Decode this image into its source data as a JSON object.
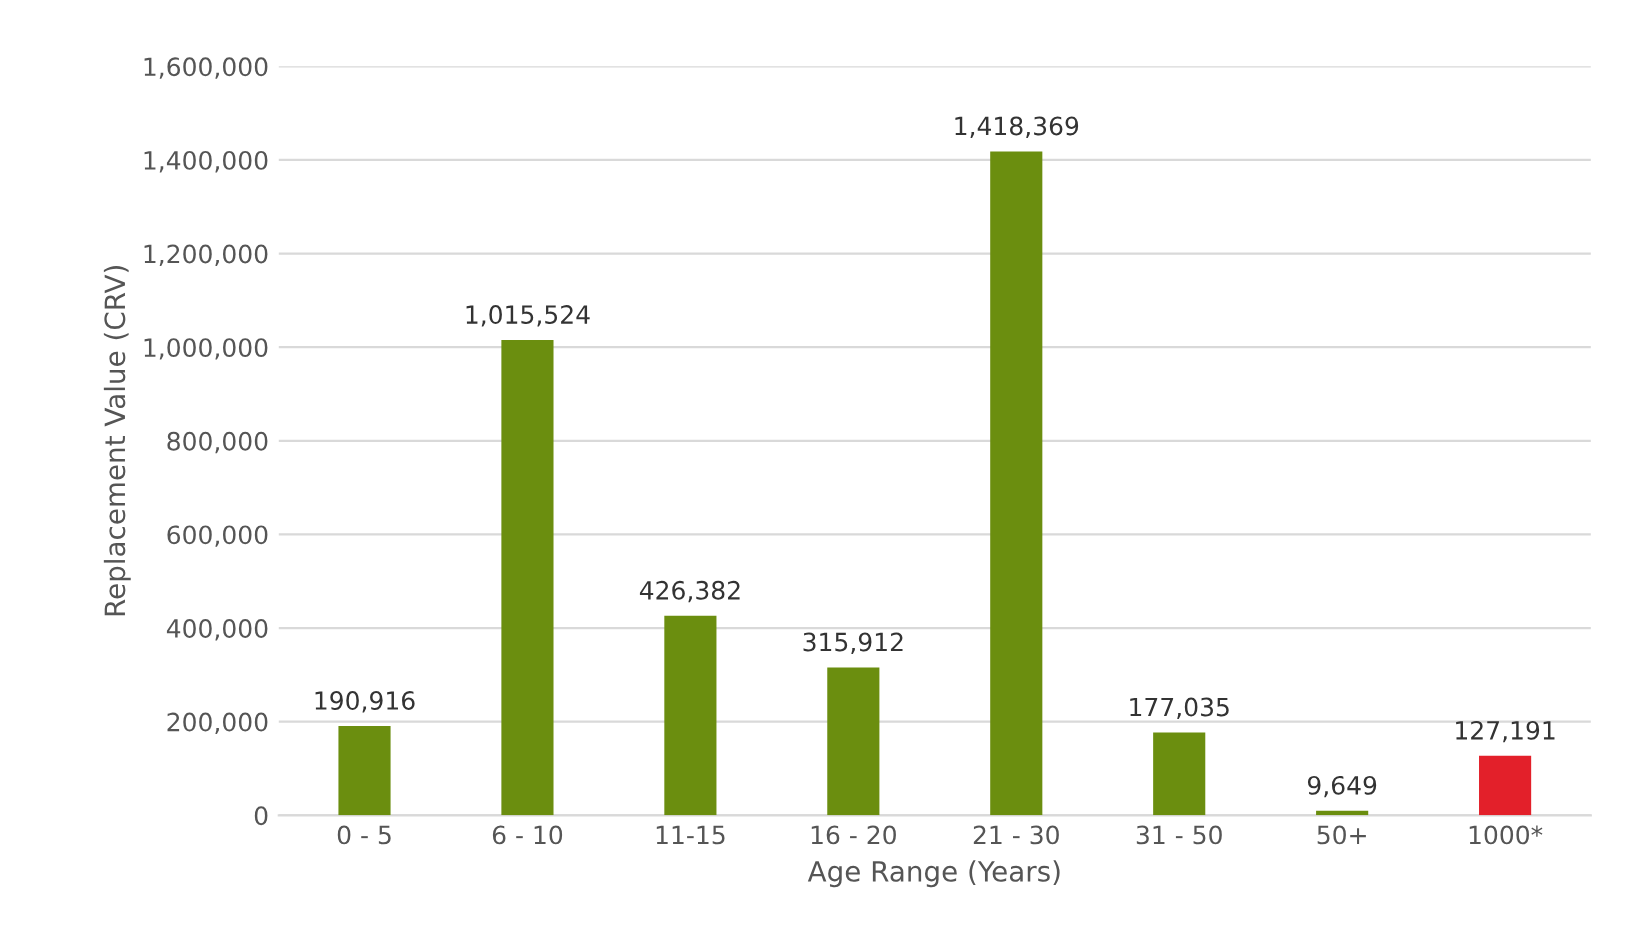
{
  "chart_data": {
    "type": "bar",
    "xlabel": "Age Range (Years)",
    "ylabel": "Replacement Value (CRV)",
    "categories": [
      "0 - 5",
      "6 - 10",
      "11-15",
      "16 - 20",
      "21 - 30",
      "31 - 50",
      "50+",
      "1000*"
    ],
    "values": [
      190916,
      1015524,
      426382,
      315912,
      1418369,
      177035,
      9649,
      127191
    ],
    "colors": [
      "#6b8e0f",
      "#6b8e0f",
      "#6b8e0f",
      "#6b8e0f",
      "#6b8e0f",
      "#6b8e0f",
      "#6b8e0f",
      "#e3202a"
    ],
    "value_labels": [
      "190,916",
      "1,015,524",
      "426,382",
      "315,912",
      "1,418,369",
      "177,035",
      "9,649",
      "127,191"
    ],
    "ylim": [
      0,
      1600000
    ],
    "yticks": [
      {
        "value": 0,
        "label": "0"
      },
      {
        "value": 200000,
        "label": "200,000"
      },
      {
        "value": 400000,
        "label": "400,000"
      },
      {
        "value": 600000,
        "label": "600,000"
      },
      {
        "value": 800000,
        "label": "800,000"
      },
      {
        "value": 1000000,
        "label": "1,000,000"
      },
      {
        "value": 1200000,
        "label": "1,200,000"
      },
      {
        "value": 1400000,
        "label": "1,400,000"
      },
      {
        "value": 1600000,
        "label": "1,600,000"
      }
    ],
    "grid": "y",
    "legend": false
  }
}
